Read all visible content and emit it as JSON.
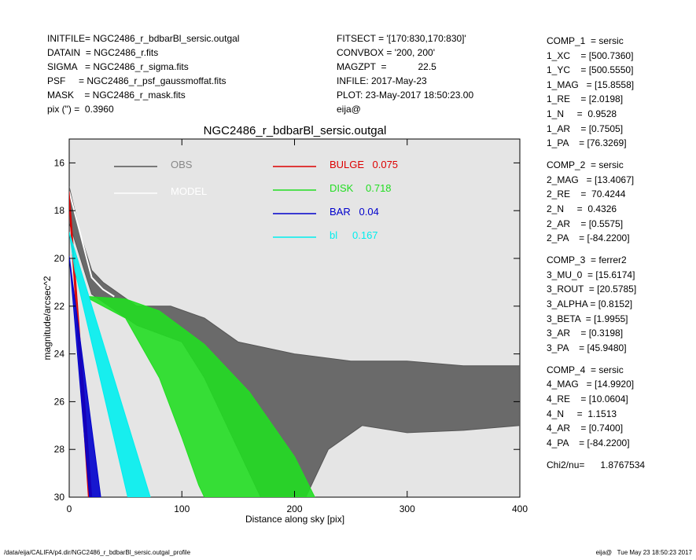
{
  "header_left": [
    "INITFILE= NGC2486_r_bdbarBl_sersic.outgal",
    "DATAIN  = NGC2486_r.fits",
    "SIGMA   = NGC2486_r_sigma.fits",
    "PSF     = NGC2486_r_psf_gaussmoffat.fits",
    "MASK    = NGC2486_r_mask.fits",
    "pix (\") =  0.3960"
  ],
  "header_mid": [
    "FITSECT = '[170:830,170:830]'",
    "CONVBOX = '200, 200'",
    "MAGZPT  =            22.5",
    "INFILE: 2017-May-23",
    "PLOT: 23-May-2017 18:50:23.00",
    "eija@"
  ],
  "side_panel": [
    [
      "COMP_1  = sersic",
      "1_XC    = [500.7360]",
      "1_YC    = [500.5550]",
      "1_MAG   = [15.8558]",
      "1_RE    = [2.0198]",
      "1_N     =  0.9528",
      "1_AR    = [0.7505]",
      "1_PA    = [76.3269]"
    ],
    [
      "COMP_2  = sersic",
      "2_MAG   = [13.4067]",
      "2_RE    =  70.4244",
      "2_N     =  0.4326",
      "2_AR    = [0.5575]",
      "2_PA    = [-84.2200]"
    ],
    [
      "COMP_3  = ferrer2",
      "3_MU_0  = [15.6174]",
      "3_ROUT  = [20.5785]",
      "3_ALPHA = [0.8152]",
      "3_BETA  = [1.9955]",
      "3_AR    = [0.3198]",
      "3_PA    = [45.9480]"
    ],
    [
      "COMP_4  = sersic",
      "4_MAG   = [14.9920]",
      "4_RE    = [10.0604]",
      "4_N     =  1.1513",
      "4_AR    = [0.7400]",
      "4_PA    = [-84.2200]"
    ],
    [
      "Chi2/nu=      1.8767534"
    ]
  ],
  "footer_left": "/data/eija/CALIFA/p4.dir/NGC2486_r_bdbarBl_sersic.outgal_profile",
  "footer_right": "eija@   Tue May 23 18:50:23 2017",
  "chart_data": {
    "type": "scatter",
    "title": "NGC2486_r_bdbarBl_sersic.outgal",
    "x_label": "Distance along sky [pix]",
    "y_label": "magnitude/arcsec^2",
    "xlim": [
      0,
      400
    ],
    "xticks": [
      0,
      100,
      200,
      300,
      400
    ],
    "ylim": [
      30,
      15
    ],
    "yticks": [
      16,
      18,
      20,
      22,
      24,
      26,
      28,
      30
    ],
    "series": [
      {
        "name": "OBS",
        "color": "#555555",
        "x": [
          0,
          10,
          20,
          30,
          60,
          90,
          120,
          150,
          200,
          250,
          300,
          350,
          400
        ],
        "values": [
          17,
          19,
          20.5,
          21,
          22,
          22,
          22.5,
          23.5,
          24,
          24.3,
          24.3,
          24.5,
          24.5
        ],
        "x2": [
          0,
          20,
          60,
          100,
          120,
          150,
          170,
          210,
          230,
          260,
          300,
          350,
          400
        ],
        "values2": [
          18.5,
          21.5,
          22.8,
          23.5,
          25,
          28,
          30,
          30,
          28,
          27,
          27.3,
          27.2,
          27
        ]
      },
      {
        "name": "MODEL",
        "color": "#ffffff",
        "x": [
          0,
          10,
          20,
          30,
          40
        ],
        "values": [
          17.2,
          19,
          20.8,
          21.3,
          21.6
        ]
      },
      {
        "name": "BULGE",
        "fraction": 0.075,
        "color": "#dd0000",
        "x": [
          0,
          20
        ],
        "values": [
          17.2,
          30
        ],
        "x2": [
          0,
          17
        ],
        "values2": [
          17.8,
          30
        ]
      },
      {
        "name": "DISK",
        "fraction": 0.718,
        "color": "#22dd22",
        "x": [
          18,
          50,
          80,
          120,
          160,
          200,
          218
        ],
        "values": [
          21.6,
          21.7,
          22.2,
          23.6,
          25.6,
          28.3,
          30
        ],
        "x2": [
          18,
          50,
          80,
          100,
          115,
          120
        ],
        "values2": [
          21.7,
          22.5,
          25,
          27.5,
          29.5,
          30
        ]
      },
      {
        "name": "BAR",
        "fraction": 0.04,
        "color": "#0000cc",
        "x": [
          0,
          28
        ],
        "values": [
          19.9,
          30
        ],
        "x2": [
          0,
          18
        ],
        "values2": [
          19.9,
          30
        ]
      },
      {
        "name": "bl",
        "fraction": 0.167,
        "color": "#00eeee",
        "x": [
          0,
          72
        ],
        "values": [
          18.9,
          30
        ],
        "x2": [
          5,
          52
        ],
        "values2": [
          20.5,
          30
        ]
      }
    ]
  }
}
